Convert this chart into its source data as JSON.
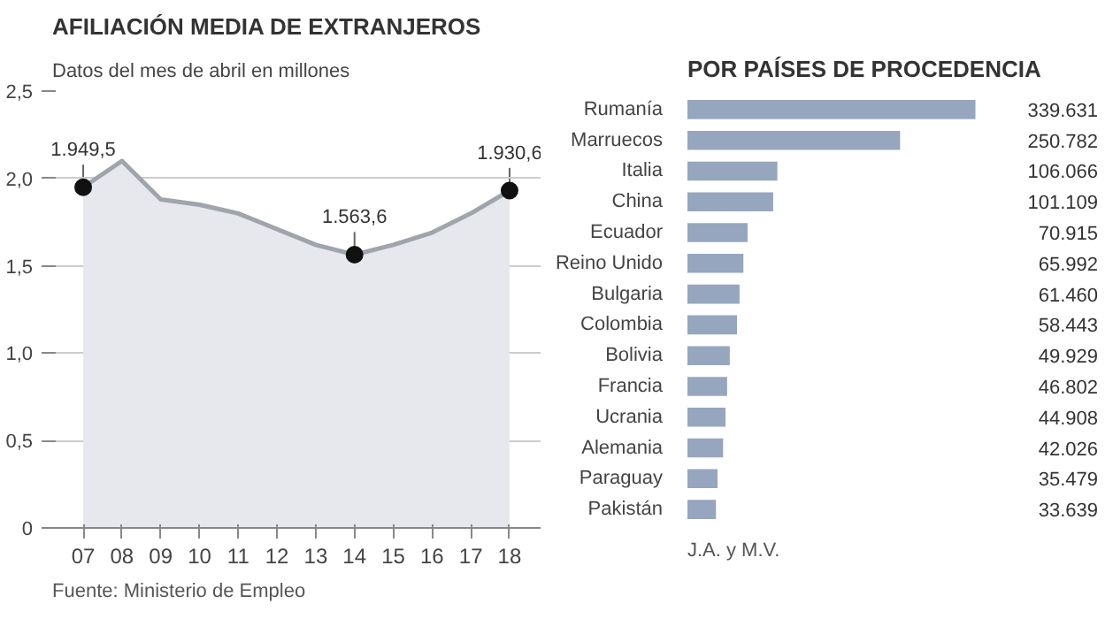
{
  "chart_data": [
    {
      "type": "area",
      "title": "AFILIACIÓN MEDIA DE EXTRANJEROS",
      "subtitle": "Datos del mes de abril en millones",
      "categories": [
        "07",
        "08",
        "09",
        "10",
        "11",
        "12",
        "13",
        "14",
        "15",
        "16",
        "17",
        "18"
      ],
      "series": [
        {
          "color": "#a0a4ab",
          "values": [
            1.9495,
            2.1,
            1.88,
            1.85,
            1.8,
            1.71,
            1.62,
            1.5636,
            1.62,
            1.69,
            1.8,
            1.9306
          ]
        },
        {
          "type": "scatter",
          "color": "#111111",
          "x": [
            "07",
            "14",
            "18"
          ],
          "values": [
            1.9495,
            1.5636,
            1.9306
          ]
        }
      ],
      "ylim": [
        0,
        2.5
      ],
      "yticks": [
        {
          "value": 0,
          "label": "0"
        },
        {
          "value": 0.5,
          "label": "0,5"
        },
        {
          "value": 1,
          "label": "1,0"
        },
        {
          "value": 1.5,
          "label": "1,5"
        },
        {
          "value": 2,
          "label": "2,0"
        },
        {
          "value": 2.5,
          "label": "2,5"
        }
      ],
      "grid": "y",
      "annotations": [
        {
          "text": "1.949,5",
          "x": "07",
          "y": 1.9495
        },
        {
          "text": "1.563,6",
          "x": "14",
          "y": 1.5636
        },
        {
          "text": "1.930,6",
          "x": "18",
          "y": 1.9306
        },
        "Fuente: Ministerio de Empleo"
      ]
    },
    {
      "type": "bar",
      "orientation": "horizontal",
      "title": "POR PAÍSES DE PROCEDENCIA",
      "categories": [
        "Rumanía",
        "Marruecos",
        "Italia",
        "China",
        "Ecuador",
        "Reino Unido",
        "Bulgaria",
        "Colombia",
        "Bolivia",
        "Francia",
        "Ucrania",
        "Alemania",
        "Paraguay",
        "Pakistán"
      ],
      "values": [
        339631,
        250782,
        106066,
        101109,
        70915,
        65992,
        61460,
        58443,
        49929,
        46802,
        44908,
        42026,
        35479,
        33639
      ],
      "value_labels": [
        "339.631",
        "250.782",
        "106.066",
        "101.109",
        "70.915",
        "65.992",
        "61.460",
        "58.443",
        "49.929",
        "46.802",
        "44.908",
        "42.026",
        "35.479",
        "33.639"
      ],
      "color": "#97a6bf",
      "annotations": [
        "J.A. y M.V."
      ]
    }
  ]
}
